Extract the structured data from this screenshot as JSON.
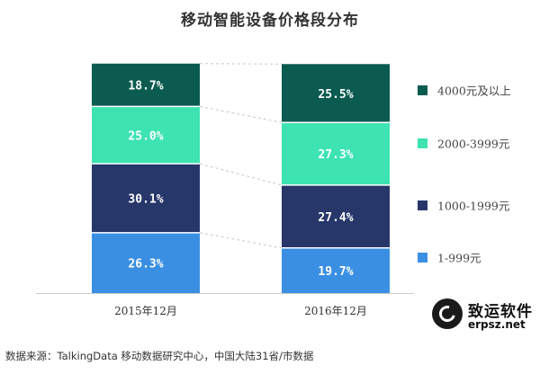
{
  "chart_data": {
    "type": "bar",
    "stacked": true,
    "title": "移动智能设备价格段分布",
    "categories": [
      "2015年12月",
      "2016年12月"
    ],
    "series": [
      {
        "name": "1-999元",
        "values": [
          26.3,
          19.7
        ],
        "labels": [
          "26.3%",
          "19.7%"
        ],
        "color": "#3a8fe3"
      },
      {
        "name": "1000-1999元",
        "values": [
          30.1,
          27.4
        ],
        "labels": [
          "30.1%",
          "27.4%"
        ],
        "color": "#27376a"
      },
      {
        "name": "2000-3999元",
        "values": [
          25.0,
          27.3
        ],
        "labels": [
          "25.0%",
          "27.3%"
        ],
        "color": "#3de3b1"
      },
      {
        "name": "4000元及以上",
        "values": [
          18.7,
          25.5
        ],
        "labels": [
          "18.7%",
          "25.5%"
        ],
        "color": "#0c5b50"
      }
    ],
    "ylim": [
      0,
      100
    ],
    "legend_position": "right",
    "connector_lines": true
  },
  "source_note": "数据来源：TalkingData 移动数据研究中心，中国大陆31省/市数据",
  "watermark": {
    "name": "致运软件",
    "url": "erpsz.net"
  }
}
